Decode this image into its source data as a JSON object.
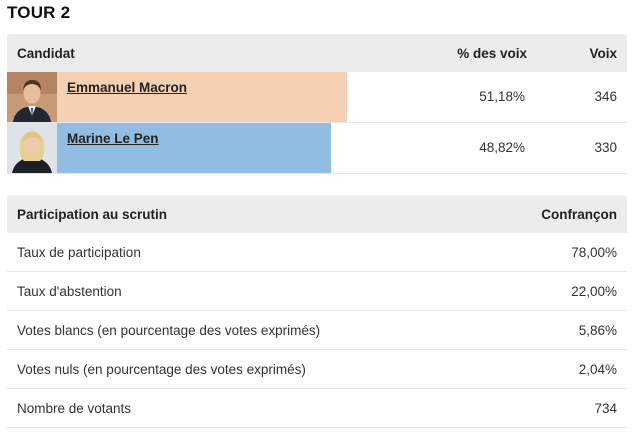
{
  "title": "TOUR 2",
  "candidates_table": {
    "headers": {
      "candidate": "Candidat",
      "percent": "% des voix",
      "votes": "Voix"
    },
    "rows": [
      {
        "name": "Emmanuel Macron",
        "percent": "51,18%",
        "votes": "346",
        "share": 51.18,
        "bar_color": "#f6d0b3",
        "photo_icon": "portrait-man-icon"
      },
      {
        "name": "Marine Le Pen",
        "percent": "48,82%",
        "votes": "330",
        "share": 48.82,
        "bar_color": "#92bde3",
        "photo_icon": "portrait-woman-icon"
      }
    ]
  },
  "participation_table": {
    "headers": {
      "label": "Participation au scrutin",
      "place": "Confrançon"
    },
    "rows": [
      {
        "label": "Taux de participation",
        "value": "78,00%"
      },
      {
        "label": "Taux d'abstention",
        "value": "22,00%"
      },
      {
        "label": "Votes blancs (en pourcentage des votes exprimés)",
        "value": "5,86%"
      },
      {
        "label": "Votes nuls (en pourcentage des votes exprimés)",
        "value": "2,04%"
      },
      {
        "label": "Nombre de votants",
        "value": "734"
      }
    ]
  }
}
